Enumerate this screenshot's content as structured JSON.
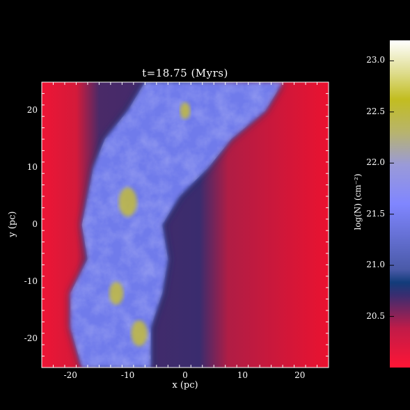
{
  "figure": {
    "title": "t=18.75 (Myrs)",
    "xlabel": "x (pc)",
    "ylabel": "y (pc)"
  },
  "chart_data": {
    "type": "heatmap",
    "title": "t=18.75 (Myrs)",
    "xlabel": "x (pc)",
    "ylabel": "y (pc)",
    "xlim": [
      -25,
      25
    ],
    "ylim": [
      -25,
      25
    ],
    "xticks": [
      -20,
      -10,
      0,
      10,
      20
    ],
    "yticks": [
      -20,
      -10,
      0,
      10,
      20
    ],
    "colorbar": {
      "label": "log(N) (cm⁻²)",
      "range": [
        20.0,
        23.2
      ],
      "ticks": [
        20.5,
        21.0,
        21.5,
        22.0,
        22.5,
        23.0
      ],
      "colors": {
        "low": "#e8102e",
        "mid_dark": "#1e3a78",
        "mid": "#7f86ff",
        "high": "#c8c030",
        "top": "#ffffff"
      }
    },
    "filament": {
      "description_values": "column-density ridge running from roughly (-12, -25) to (5, 25) pc",
      "ridge_x": [
        -12,
        -13,
        -12,
        -10,
        -11,
        -9,
        -6,
        -3,
        2,
        5
      ],
      "ridge_y": [
        -25,
        -18,
        -12,
        -6,
        0,
        5,
        10,
        15,
        20,
        25
      ],
      "half_width": [
        6,
        7,
        8,
        7,
        7,
        8,
        10,
        11,
        12,
        12
      ],
      "peaks": [
        {
          "x": -10,
          "y": 4,
          "value": 22.5
        },
        {
          "x": -8,
          "y": -19,
          "value": 22.4
        },
        {
          "x": -12,
          "y": -12,
          "value": 22.3
        },
        {
          "x": 0,
          "y": 20,
          "value": 22.1
        }
      ]
    }
  }
}
